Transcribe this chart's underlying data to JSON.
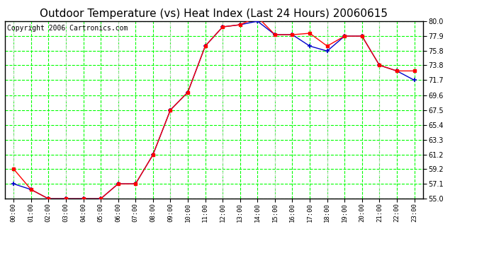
{
  "title": "Outdoor Temperature (vs) Heat Index (Last 24 Hours) 20060615",
  "copyright": "Copyright 2006 Cartronics.com",
  "hours": [
    "00:00",
    "01:00",
    "02:00",
    "03:00",
    "04:00",
    "05:00",
    "06:00",
    "07:00",
    "08:00",
    "09:00",
    "10:00",
    "11:00",
    "12:00",
    "13:00",
    "14:00",
    "15:00",
    "16:00",
    "17:00",
    "18:00",
    "19:00",
    "20:00",
    "21:00",
    "22:00",
    "23:00"
  ],
  "temp": [
    59.2,
    56.3,
    55.0,
    55.0,
    55.0,
    55.0,
    57.1,
    57.1,
    61.2,
    67.5,
    70.0,
    76.5,
    79.2,
    79.5,
    80.6,
    78.1,
    78.1,
    78.3,
    76.5,
    77.9,
    77.9,
    73.8,
    73.0,
    73.0
  ],
  "heat_index": [
    57.1,
    56.3,
    55.0,
    55.0,
    55.0,
    55.0,
    57.1,
    57.1,
    61.2,
    67.5,
    70.0,
    76.5,
    79.2,
    79.5,
    80.0,
    78.1,
    78.1,
    76.5,
    75.8,
    77.9,
    77.9,
    73.8,
    73.0,
    71.7
  ],
  "ylim": [
    55.0,
    80.0
  ],
  "yticks": [
    55.0,
    57.1,
    59.2,
    61.2,
    63.3,
    65.4,
    67.5,
    69.6,
    71.7,
    73.8,
    75.8,
    77.9,
    80.0
  ],
  "bg_color": "#ffffff",
  "plot_bg_color": "#ffffff",
  "grid_color": "#00ff00",
  "vgrid_color": "#cccccc",
  "temp_color": "#ff0000",
  "heat_index_color": "#0000cc",
  "title_fontsize": 11,
  "copyright_fontsize": 7
}
